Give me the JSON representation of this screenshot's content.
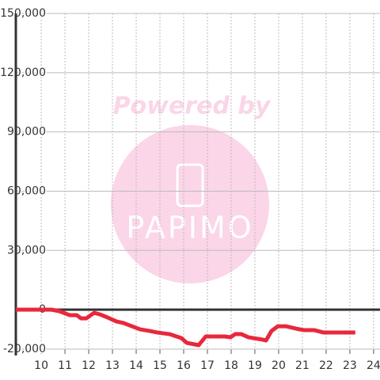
{
  "chart_data": {
    "type": "line",
    "watermark": {
      "title": "Powered by",
      "brand": "PAPIMO"
    },
    "x": [
      8.93,
      10.43,
      10.77,
      11.2,
      11.5,
      11.67,
      11.9,
      12.23,
      12.47,
      12.8,
      13.17,
      13.47,
      13.73,
      14.17,
      14.57,
      14.9,
      15.4,
      15.9,
      16.13,
      16.63,
      16.93,
      17.73,
      17.97,
      18.17,
      18.43,
      18.73,
      19.33,
      19.47,
      19.7,
      19.97,
      20.3,
      20.73,
      21.07,
      21.5,
      21.9,
      23.23
    ],
    "series": [
      {
        "color": "#e8283c",
        "values": [
          0,
          0,
          -800,
          -2800,
          -2800,
          -4400,
          -4400,
          -1600,
          -2400,
          -4000,
          -6000,
          -6800,
          -8000,
          -10000,
          -10800,
          -11600,
          -12400,
          -14400,
          -16800,
          -18000,
          -13600,
          -13600,
          -14000,
          -12400,
          -12400,
          -14000,
          -15200,
          -15600,
          -10800,
          -8400,
          -8400,
          -9600,
          -10400,
          -10400,
          -11600,
          -11600
        ]
      }
    ],
    "xlim": [
      8.93,
      24.27
    ],
    "ylim": [
      -20000,
      150000
    ],
    "xticks": [
      10,
      11,
      12,
      13,
      14,
      15,
      16,
      17,
      18,
      19,
      20,
      21,
      22,
      23,
      24
    ],
    "yticks": [
      {
        "value": -20000,
        "label": "-20,000"
      },
      0,
      {
        "value": 30000,
        "label": "30,000"
      },
      {
        "value": 60000,
        "label": "60,000"
      },
      {
        "value": 90000,
        "label": "90,000"
      },
      {
        "value": 120000,
        "label": "120,000"
      },
      {
        "value": 150000,
        "label": "150,000"
      }
    ],
    "grid": true
  }
}
